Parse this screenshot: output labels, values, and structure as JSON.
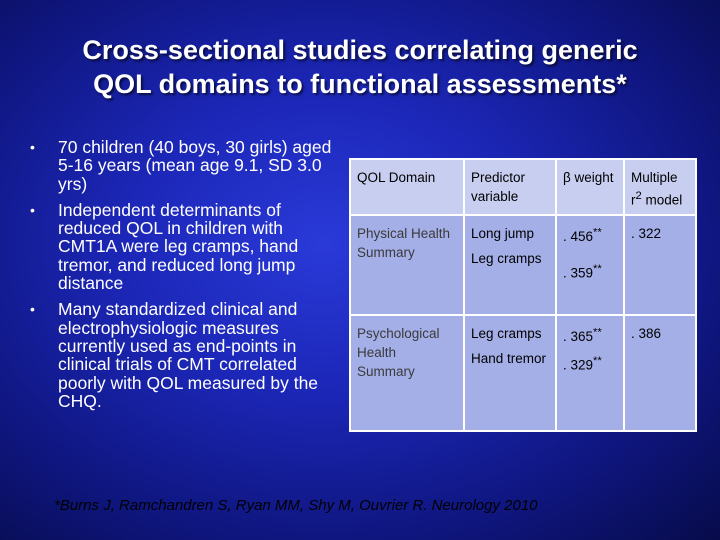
{
  "title": {
    "line1": "Cross-sectional studies correlating generic",
    "line2": "QOL domains to functional assessments*"
  },
  "bullets": [
    "70 children (40 boys, 30 girls) aged 5-16 years (mean age 9.1, SD 3.0 yrs)",
    "Independent determinants of reduced QOL in children with CMT1A were leg cramps, hand tremor, and reduced long jump distance",
    "Many standardized clinical and electrophysiologic measures currently  used as end-points in clinical trials of CMT correlated poorly with QOL measured by the CHQ."
  ],
  "bullet_symbol": "•",
  "table": {
    "headers": {
      "domain": "QOL Domain",
      "predictor": "Predictor variable",
      "beta": "β weight",
      "r2_prefix": "Multiple r",
      "r2_sup": "2",
      "r2_suffix": " model"
    },
    "rows": [
      {
        "domain": "Physical Health Summary",
        "predictor1": "Long jump",
        "predictor2": "Leg cramps",
        "beta1": ". 456",
        "beta2": ". 359",
        "sig": "**",
        "r2": ". 322"
      },
      {
        "domain": "Psychological Health Summary",
        "predictor1": "Leg cramps",
        "predictor2": "Hand tremor",
        "beta1": ". 365",
        "beta2": ". 329",
        "sig": "**",
        "r2": ". 386"
      }
    ]
  },
  "footnote": "*Burns J, Ramchandren S, Ryan MM, Shy M, Ouvrier R. Neurology 2010"
}
